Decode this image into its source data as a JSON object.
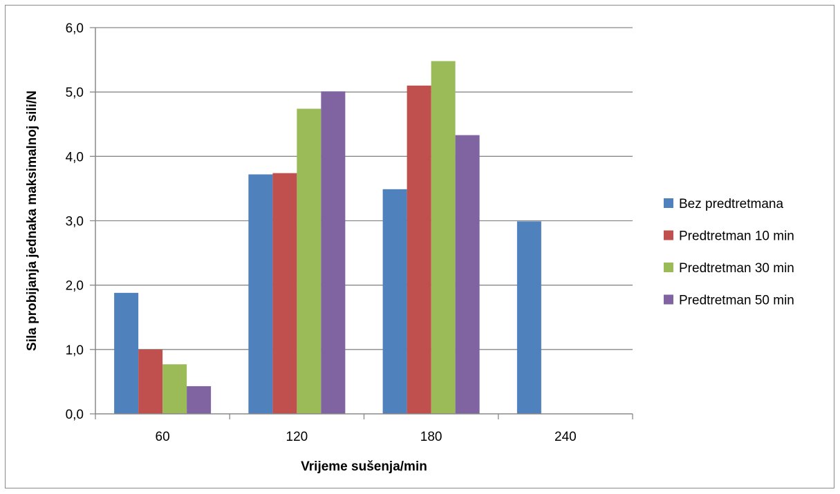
{
  "chart_data": {
    "type": "bar",
    "title": "",
    "xlabel": "Vrijeme sušenja/min",
    "ylabel": "Sila probijanja jednaka maksimalnoj sili/N",
    "categories": [
      "60",
      "120",
      "180",
      "240"
    ],
    "yticks": [
      "0,0",
      "1,0",
      "2,0",
      "3,0",
      "4,0",
      "5,0",
      "6,0"
    ],
    "ylim": [
      0,
      6
    ],
    "grid": true,
    "legend_position": "right",
    "series": [
      {
        "name": "Bez predtretmana",
        "color": "#4F81BD",
        "values": [
          1.88,
          3.72,
          3.49,
          2.99
        ]
      },
      {
        "name": "Predtretman 10 min",
        "color": "#C0504D",
        "values": [
          1.0,
          3.74,
          5.1,
          0
        ]
      },
      {
        "name": "Predtretman 30 min",
        "color": "#9BBB59",
        "values": [
          0.77,
          4.74,
          5.48,
          0
        ]
      },
      {
        "name": "Predtretman 50 min",
        "color": "#8064A2",
        "values": [
          0.43,
          5.01,
          4.33,
          0
        ]
      }
    ]
  }
}
